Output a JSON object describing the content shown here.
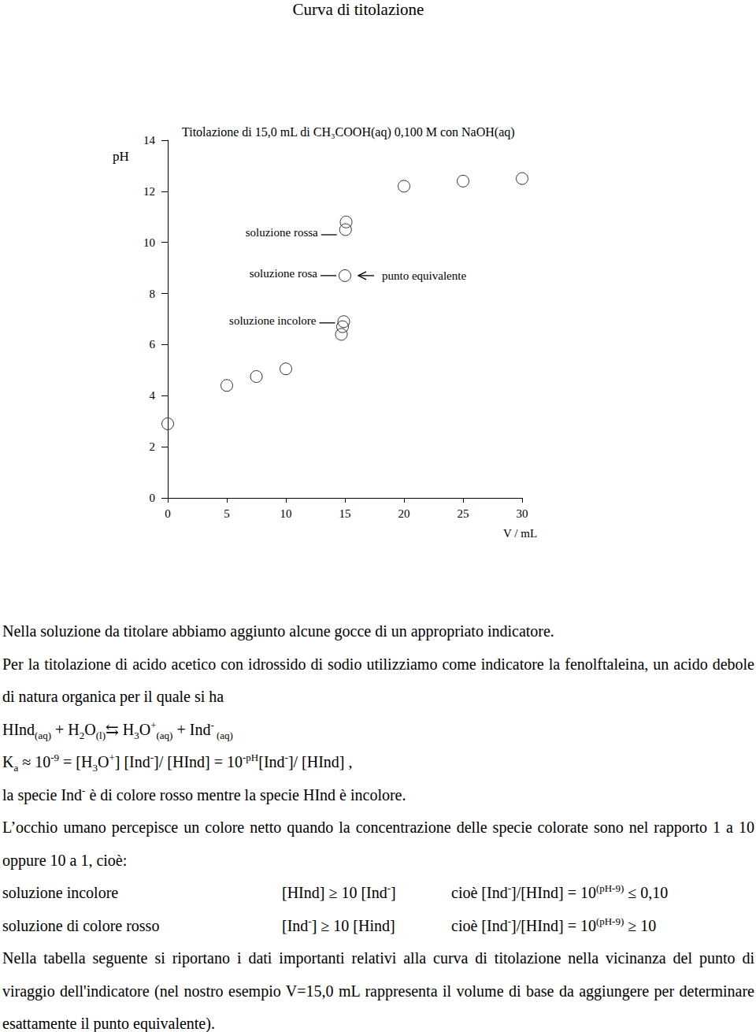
{
  "chart_data": {
    "type": "scatter",
    "title": "Titolazione di 15,0 mL di CH₃COOH(aq) 0,100 M con NaOH(aq)",
    "x_label": "V / mL",
    "y_label": "pH",
    "x": [
      0,
      5,
      7.5,
      10,
      14.7,
      14.8,
      14.9,
      15.0,
      15.05,
      15.1,
      20,
      25,
      30
    ],
    "values": [
      2.9,
      4.4,
      4.75,
      5.05,
      6.4,
      6.7,
      6.9,
      8.7,
      10.5,
      10.8,
      12.2,
      12.4,
      12.5
    ],
    "color": "#000000",
    "marker": "circle",
    "xlim": [
      0,
      30
    ],
    "xticks": [
      0,
      5,
      10,
      15,
      20,
      25,
      30
    ],
    "ylim": [
      0,
      14
    ],
    "yticks": [
      0,
      2,
      4,
      6,
      8,
      10,
      12,
      14
    ],
    "grid": false,
    "annotations": [
      {
        "text": "soluzione rossa",
        "x": 15.05,
        "y": 10.3
      },
      {
        "text": "soluzione rosa",
        "x": 15.0,
        "y": 8.7
      },
      {
        "text": "soluzione incolore",
        "x": 14.9,
        "y": 6.85
      },
      {
        "text": "punto equivalente",
        "x": 15.0,
        "y": 8.7
      }
    ]
  },
  "document": {
    "title": "Curva di titolazione",
    "body": [
      {
        "p": [
          "Nella soluzione da titolare abbiamo aggiunto alcune gocce di un appropriato indicatore."
        ]
      },
      {
        "p": [
          "Per la titolazione di acido acetico con idrossido di sodio utilizziamo come indicatore la fenolftaleina, un acido debole di natura organica per il quale si ha"
        ]
      },
      {
        "p": [
          "HInd",
          {
            "sub": "(aq)"
          },
          " + H",
          {
            "sub": "2"
          },
          "O",
          {
            "sub": "(l)"
          },
          "⇆ H",
          {
            "sub": "3"
          },
          "O",
          {
            "sup": "+"
          },
          {
            "sub": "(aq)"
          },
          " + Ind",
          {
            "sup": "-"
          },
          {
            "sub": " (aq)"
          }
        ]
      },
      {
        "p": [
          "K",
          {
            "sub": "a"
          },
          " ≈ 10",
          {
            "sup": "-9"
          },
          " = [H",
          {
            "sub": "3"
          },
          "O",
          {
            "sup": "+"
          },
          "] [Ind",
          {
            "sup": "-"
          },
          "]/ [HInd] = 10",
          {
            "sup": "-pH"
          },
          "[Ind",
          {
            "sup": "-"
          },
          "]/ [HInd] ,"
        ]
      },
      {
        "p": [
          "la specie Ind",
          {
            "sup": "-"
          },
          " è di colore rosso mentre la specie HInd è incolore."
        ]
      },
      {
        "p": [
          "L’occhio umano percepisce un colore netto quando la concentrazione delle specie colorate sono nel rapporto 1 a 10 oppure 10 a 1, cioè:"
        ]
      },
      {
        "row": [
          [
            "soluzione incolore"
          ],
          [
            "[HInd] ≥ 10 [Ind",
            {
              "sup": "-"
            },
            "]"
          ],
          [
            "cioè [Ind",
            {
              "sup": "-"
            },
            "]/[HInd] = 10",
            {
              "sup": "(pH-9)"
            },
            " ≤ 0,10"
          ]
        ]
      },
      {
        "row": [
          [
            "soluzione di colore rosso"
          ],
          [
            "[Ind",
            {
              "sup": "-"
            },
            "] ≥ 10 [Hind]"
          ],
          [
            "cioè [Ind",
            {
              "sup": "-"
            },
            "]/[HInd] = 10",
            {
              "sup": "(pH-9)"
            },
            " ≥ 10"
          ]
        ]
      },
      {
        "p": [
          "Nella tabella seguente si riportano i dati importanti relativi alla curva di titolazione nella vicinanza del punto di viraggio dell'indicatore (nel nostro esempio V=15,0 mL rappresenta il volume di base da aggiungere per determinare esattamente il punto equivalente)."
        ]
      }
    ]
  }
}
